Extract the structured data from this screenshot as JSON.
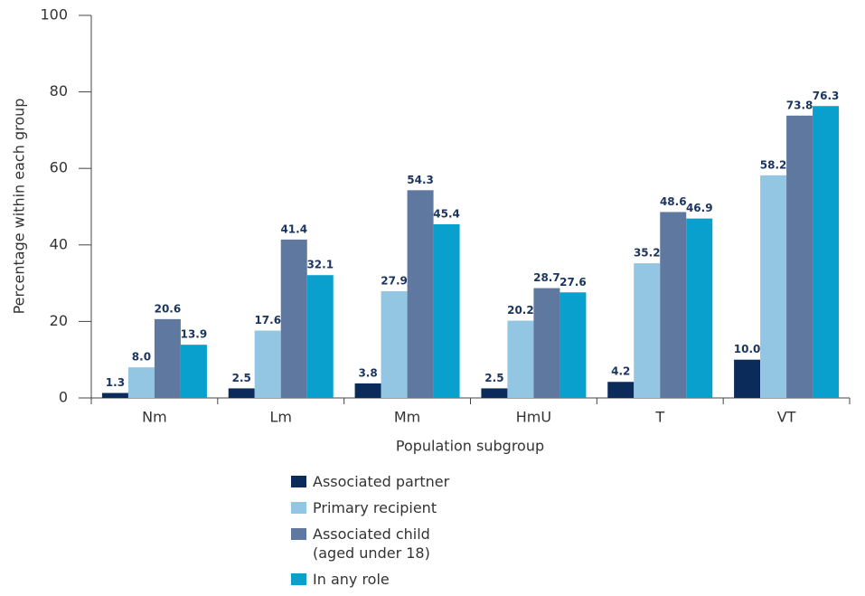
{
  "chart_data": {
    "type": "bar",
    "x_label": "Population subgroup",
    "y_label": "Percentage within each group",
    "categories": [
      "Nm",
      "Lm",
      "Mm",
      "HmU",
      "T",
      "VT"
    ],
    "series": [
      {
        "name": "Associated partner",
        "color": "#0b2c5a",
        "values": [
          1.3,
          2.5,
          3.8,
          2.5,
          4.2,
          10.0
        ],
        "value_labels": [
          "1.3",
          "2.5",
          "3.8",
          "2.5",
          "4.2",
          "10.0"
        ]
      },
      {
        "name": "Primary recipient",
        "color": "#93c6e2",
        "values": [
          8.0,
          17.6,
          27.9,
          20.2,
          35.2,
          58.2
        ],
        "value_labels": [
          "8.0",
          "17.6",
          "27.9",
          "20.2",
          "35.2",
          "58.2"
        ]
      },
      {
        "name": "Associated child (aged under 18)",
        "color": "#5f789f",
        "values": [
          20.6,
          41.4,
          54.3,
          28.7,
          48.6,
          73.8
        ],
        "value_labels": [
          "20.6",
          "41.4",
          "54.3",
          "28.7",
          "48.6",
          "73.8"
        ]
      },
      {
        "name": "In any role",
        "color": "#0aa0cd",
        "values": [
          13.9,
          32.1,
          45.4,
          27.6,
          46.9,
          76.3
        ],
        "value_labels": [
          "13.9",
          "32.1",
          "45.4",
          "27.6",
          "46.9",
          "76.3"
        ]
      }
    ],
    "ylim": [
      0,
      100
    ],
    "yticks": [
      0,
      20,
      40,
      60,
      80,
      100
    ],
    "grid": false
  }
}
